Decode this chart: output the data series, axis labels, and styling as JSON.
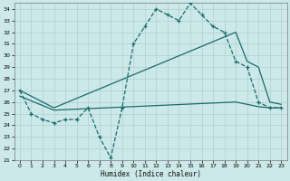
{
  "xlabel": "Humidex (Indice chaleur)",
  "bg_color": "#cce8e8",
  "grid_color": "#b0d0d0",
  "line_color": "#1a6b6b",
  "xlim": [
    -0.5,
    23.5
  ],
  "ylim": [
    21.0,
    34.5
  ],
  "xticks": [
    0,
    1,
    2,
    3,
    4,
    5,
    6,
    7,
    8,
    9,
    10,
    11,
    12,
    13,
    14,
    15,
    16,
    17,
    18,
    19,
    20,
    21,
    22,
    23
  ],
  "yticks": [
    21,
    22,
    23,
    24,
    25,
    26,
    27,
    28,
    29,
    30,
    31,
    32,
    33,
    34
  ],
  "line1_x": [
    0,
    1,
    2,
    3,
    4,
    5,
    6,
    7,
    8,
    9,
    10,
    11,
    12,
    13,
    14,
    15,
    16,
    17,
    18,
    19,
    20,
    21,
    22,
    23
  ],
  "line1_y": [
    27.0,
    25.0,
    24.5,
    24.2,
    24.5,
    24.5,
    25.5,
    23.0,
    21.2,
    25.5,
    31.0,
    32.5,
    34.0,
    33.5,
    33.0,
    34.5,
    33.5,
    32.5,
    32.0,
    29.5,
    29.0,
    26.0,
    25.5,
    25.5
  ],
  "line2_x": [
    0,
    3,
    19,
    20,
    21,
    22,
    23
  ],
  "line2_y": [
    27.0,
    25.5,
    32.0,
    29.5,
    29.0,
    26.0,
    25.8
  ],
  "line3_x": [
    0,
    3,
    19,
    20,
    21,
    22,
    23
  ],
  "line3_y": [
    26.5,
    25.3,
    26.0,
    25.8,
    25.6,
    25.5,
    25.5
  ]
}
